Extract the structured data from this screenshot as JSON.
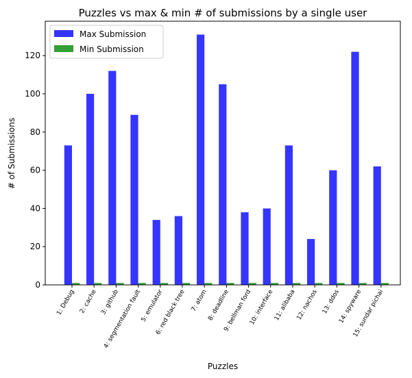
{
  "chart_data": {
    "type": "bar",
    "title": "Puzzles vs max & min # of submissions by a single user",
    "xlabel": "Puzzles",
    "ylabel": "# of Submissions",
    "ylim": [
      0,
      138
    ],
    "yticks": [
      0,
      20,
      40,
      60,
      80,
      100,
      120
    ],
    "grid": false,
    "legend_position": "top-left",
    "categories": [
      "1: Debug",
      "2: cache",
      "3: github",
      "4: segmentation fault",
      "5: emulator",
      "6: red black tree",
      "7: atom",
      "8: deadline",
      "9: bellman ford",
      "10: interface",
      "11: alibaba",
      "12: nachos",
      "13: ddos",
      "14: spyware",
      "15: sundar pichai"
    ],
    "series": [
      {
        "name": "Max Submission",
        "color": "#3333ff",
        "values": [
          73,
          100,
          112,
          89,
          34,
          36,
          131,
          105,
          38,
          40,
          73,
          24,
          60,
          122,
          62
        ]
      },
      {
        "name": "Min Submission",
        "color": "#33a033",
        "values": [
          1,
          1,
          1,
          1,
          1,
          1,
          1,
          1,
          1,
          1,
          1,
          1,
          1,
          1,
          1
        ]
      }
    ]
  }
}
